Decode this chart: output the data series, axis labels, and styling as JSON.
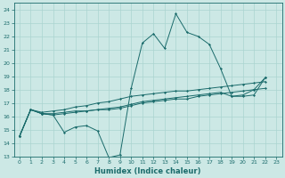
{
  "xlabel": "Humidex (Indice chaleur)",
  "bg_color": "#cce8e5",
  "line_color": "#1a6b6b",
  "grid_color": "#aad4d0",
  "xlim": [
    -0.5,
    23.5
  ],
  "ylim": [
    13,
    24.5
  ],
  "yticks": [
    13,
    14,
    15,
    16,
    17,
    18,
    19,
    20,
    21,
    22,
    23,
    24
  ],
  "xticks": [
    0,
    1,
    2,
    3,
    4,
    5,
    6,
    7,
    8,
    9,
    10,
    11,
    12,
    13,
    14,
    15,
    16,
    17,
    18,
    19,
    20,
    21,
    22,
    23
  ],
  "series1_x": [
    0,
    1,
    2,
    3,
    4,
    5,
    6,
    7,
    8,
    9,
    10,
    11,
    12,
    13,
    14,
    15,
    16,
    17,
    18,
    19,
    20,
    21,
    22
  ],
  "series1_y": [
    14.5,
    16.5,
    16.2,
    16.1,
    14.8,
    15.2,
    15.3,
    14.9,
    12.9,
    13.1,
    18.1,
    21.5,
    22.2,
    21.1,
    23.7,
    22.3,
    22.0,
    21.4,
    19.6,
    17.5,
    17.6,
    18.0,
    18.9
  ],
  "series2_x": [
    0,
    1,
    2,
    3,
    4,
    5,
    6,
    7,
    8,
    9,
    10,
    11,
    12,
    13,
    14,
    15,
    16,
    17,
    18,
    19,
    20,
    21,
    22
  ],
  "series2_y": [
    14.5,
    16.5,
    16.2,
    16.2,
    16.3,
    16.4,
    16.4,
    16.5,
    16.5,
    16.6,
    16.8,
    17.0,
    17.1,
    17.2,
    17.3,
    17.3,
    17.5,
    17.6,
    17.7,
    17.8,
    17.9,
    18.0,
    18.1
  ],
  "series3_x": [
    0,
    1,
    2,
    3,
    4,
    5,
    6,
    7,
    8,
    9,
    10,
    11,
    12,
    13,
    14,
    15,
    16,
    17,
    18,
    19,
    20,
    21,
    22
  ],
  "series3_y": [
    14.5,
    16.5,
    16.3,
    16.4,
    16.5,
    16.7,
    16.8,
    17.0,
    17.1,
    17.3,
    17.5,
    17.6,
    17.7,
    17.8,
    17.9,
    17.9,
    18.0,
    18.1,
    18.2,
    18.3,
    18.4,
    18.5,
    18.6
  ],
  "series4_x": [
    0,
    1,
    2,
    3,
    4,
    5,
    6,
    7,
    8,
    9,
    10,
    11,
    12,
    13,
    14,
    15,
    16,
    17,
    18,
    19,
    20,
    21,
    22
  ],
  "series4_y": [
    14.5,
    16.5,
    16.2,
    16.1,
    16.2,
    16.3,
    16.4,
    16.5,
    16.6,
    16.7,
    16.9,
    17.1,
    17.2,
    17.3,
    17.4,
    17.5,
    17.6,
    17.7,
    17.8,
    17.5,
    17.5,
    17.6,
    18.9
  ]
}
